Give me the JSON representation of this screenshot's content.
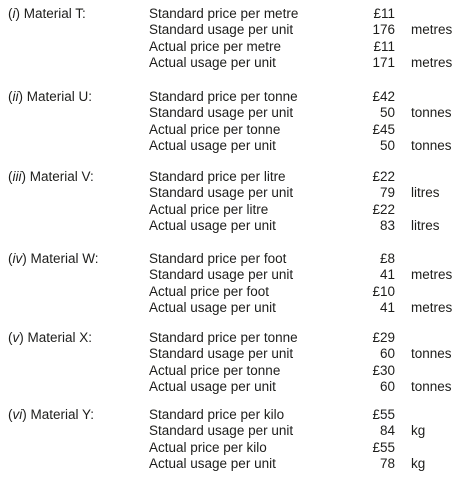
{
  "materials": [
    {
      "num": "i",
      "name": "Material T:",
      "rows": [
        {
          "desc": "Standard price per metre",
          "value": "£11",
          "unit": ""
        },
        {
          "desc": "Standard usage per unit",
          "value": "176",
          "unit": "metres"
        },
        {
          "desc": "Actual price per metre",
          "value": "£11",
          "unit": ""
        },
        {
          "desc": "Actual usage per unit",
          "value": "171",
          "unit": "metres"
        }
      ]
    },
    {
      "num": "ii",
      "name": "Material U:",
      "rows": [
        {
          "desc": "Standard price per tonne",
          "value": "£42",
          "unit": ""
        },
        {
          "desc": "Standard usage per unit",
          "value": "50",
          "unit": "tonnes"
        },
        {
          "desc": "Actual price per tonne",
          "value": "£45",
          "unit": ""
        },
        {
          "desc": "Actual usage per unit",
          "value": "50",
          "unit": "tonnes"
        }
      ]
    },
    {
      "num": "iii",
      "name": "Material V:",
      "rows": [
        {
          "desc": "Standard price per litre",
          "value": "£22",
          "unit": ""
        },
        {
          "desc": "Standard usage per unit",
          "value": "79",
          "unit": "litres"
        },
        {
          "desc": "Actual price per litre",
          "value": "£22",
          "unit": ""
        },
        {
          "desc": "Actual usage per unit",
          "value": "83",
          "unit": "litres"
        }
      ]
    },
    {
      "num": "iv",
      "name": "Material W:",
      "rows": [
        {
          "desc": "Standard price per foot",
          "value": "£8",
          "unit": ""
        },
        {
          "desc": "Standard usage per unit",
          "value": "41",
          "unit": "metres"
        },
        {
          "desc": "Actual price per foot",
          "value": "£10",
          "unit": ""
        },
        {
          "desc": "Actual usage per unit",
          "value": "41",
          "unit": "metres"
        }
      ]
    },
    {
      "num": "v",
      "name": "Material X:",
      "rows": [
        {
          "desc": "Standard price per tonne",
          "value": "£29",
          "unit": ""
        },
        {
          "desc": "Standard usage per unit",
          "value": "60",
          "unit": "tonnes"
        },
        {
          "desc": "Actual price per tonne",
          "value": "£30",
          "unit": ""
        },
        {
          "desc": "Actual usage per unit",
          "value": "60",
          "unit": "tonnes"
        }
      ]
    },
    {
      "num": "vi",
      "name": "Material Y:",
      "rows": [
        {
          "desc": "Standard price per kilo",
          "value": "£55",
          "unit": ""
        },
        {
          "desc": "Standard usage per unit",
          "value": "84",
          "unit": "kg"
        },
        {
          "desc": "Actual price per kilo",
          "value": "£55",
          "unit": ""
        },
        {
          "desc": "Actual usage per unit",
          "value": "78",
          "unit": "kg"
        }
      ]
    }
  ]
}
